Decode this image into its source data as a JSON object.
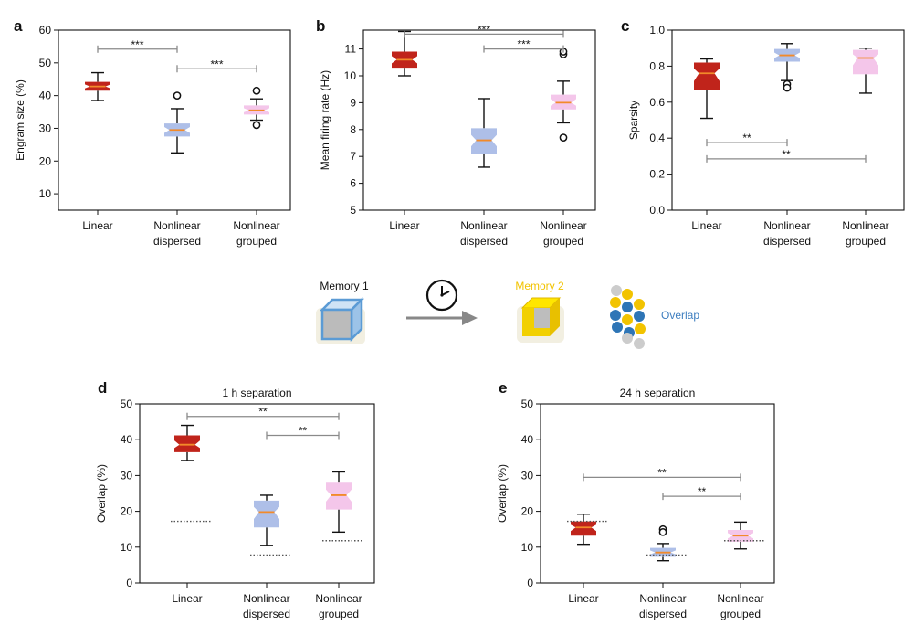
{
  "panel_letters": [
    "a",
    "b",
    "c",
    "d",
    "e"
  ],
  "group_labels": [
    [
      "Linear"
    ],
    [
      "Nonlinear",
      "dispersed"
    ],
    [
      "Nonlinear",
      "grouped"
    ]
  ],
  "colors": {
    "linear": "#c0241b",
    "dispersed": "#aebfe8",
    "grouped": "#f4c6ea",
    "median": "#f28a2a",
    "sig_line": "#8a8a8a",
    "memory1": "#5b9bd5",
    "memory2": "#f2c300",
    "overlap_text": "#3f7fc0"
  },
  "legend": {
    "memory1_label": "Memory 1",
    "memory2_label": "Memory 2",
    "overlap_label": "Overlap",
    "icons": [
      "memory1-cube-icon",
      "clock-icon",
      "arrow-right-icon",
      "memory2-cube-icon",
      "overlap-cluster-icon"
    ]
  },
  "chart_data": [
    {
      "panel": "a",
      "type": "boxplot",
      "notched": true,
      "title": "",
      "xlabel": "",
      "ylabel": "Engram size (%)",
      "ylim": [
        5,
        60
      ],
      "yticks": [
        10,
        20,
        30,
        40,
        50,
        60
      ],
      "categories": [
        "Linear",
        "Nonlinear dispersed",
        "Nonlinear grouped"
      ],
      "boxes": [
        {
          "min": 38.5,
          "q1": 41.5,
          "median": 42.8,
          "q3": 44.2,
          "max": 47,
          "outliers": []
        },
        {
          "min": 22.5,
          "q1": 27.5,
          "median": 29.5,
          "q3": 31.5,
          "max": 36,
          "outliers": [
            40
          ]
        },
        {
          "min": 32.5,
          "q1": 34.2,
          "median": 35.5,
          "q3": 37,
          "max": 39,
          "outliers": [
            41.5,
            31
          ]
        }
      ],
      "significance": [
        {
          "from": 0,
          "to": 1,
          "label": "***",
          "y": 54.2
        },
        {
          "from": 1,
          "to": 2,
          "label": "***",
          "y": 48.2
        }
      ]
    },
    {
      "panel": "b",
      "type": "boxplot",
      "notched": true,
      "title": "",
      "xlabel": "",
      "ylabel": "Mean firing rate (Hz)",
      "ylim": [
        5,
        11.7
      ],
      "yticks": [
        5,
        6,
        7,
        8,
        9,
        10,
        11
      ],
      "categories": [
        "Linear",
        "Nonlinear dispersed",
        "Nonlinear grouped"
      ],
      "boxes": [
        {
          "min": 10.0,
          "q1": 10.3,
          "median": 10.6,
          "q3": 10.9,
          "max": 11.65,
          "outliers": []
        },
        {
          "min": 6.6,
          "q1": 7.1,
          "median": 7.6,
          "q3": 8.05,
          "max": 9.15,
          "outliers": []
        },
        {
          "min": 8.25,
          "q1": 8.75,
          "median": 9.0,
          "q3": 9.3,
          "max": 9.8,
          "outliers": [
            10.8,
            10.9,
            7.7
          ]
        }
      ],
      "significance": [
        {
          "from": 0,
          "to": 2,
          "label": "***",
          "y": 11.55
        },
        {
          "from": 1,
          "to": 2,
          "label": "***",
          "y": 11.0
        }
      ]
    },
    {
      "panel": "c",
      "type": "boxplot",
      "notched": true,
      "title": "",
      "xlabel": "",
      "ylabel": "Sparsity",
      "ylim": [
        0,
        1.0
      ],
      "yticks": [
        0.0,
        0.2,
        0.4,
        0.6,
        0.8,
        1.0
      ],
      "categories": [
        "Linear",
        "Nonlinear dispersed",
        "Nonlinear grouped"
      ],
      "boxes": [
        {
          "min": 0.51,
          "q1": 0.665,
          "median": 0.76,
          "q3": 0.82,
          "max": 0.84,
          "outliers": []
        },
        {
          "min": 0.72,
          "q1": 0.825,
          "median": 0.86,
          "q3": 0.895,
          "max": 0.925,
          "outliers": [
            0.7,
            0.68
          ]
        },
        {
          "min": 0.65,
          "q1": 0.755,
          "median": 0.845,
          "q3": 0.89,
          "max": 0.9,
          "outliers": []
        }
      ],
      "significance": [
        {
          "from": 0,
          "to": 1,
          "label": "**",
          "y": 0.375
        },
        {
          "from": 0,
          "to": 2,
          "label": "**",
          "y": 0.285
        }
      ]
    },
    {
      "panel": "d",
      "type": "boxplot",
      "notched": true,
      "title": "1 h separation",
      "xlabel": "",
      "ylabel": "Overlap (%)",
      "ylim": [
        0,
        50
      ],
      "yticks": [
        0,
        10,
        20,
        30,
        40,
        50
      ],
      "categories": [
        "Linear",
        "Nonlinear dispersed",
        "Nonlinear grouped"
      ],
      "boxes": [
        {
          "min": 34.2,
          "q1": 36.5,
          "median": 38.6,
          "q3": 41.2,
          "max": 44,
          "outliers": [],
          "chance": 17.2
        },
        {
          "min": 10.5,
          "q1": 15.5,
          "median": 19.8,
          "q3": 23,
          "max": 24.5,
          "outliers": [],
          "chance": 7.8
        },
        {
          "min": 14.2,
          "q1": 20.5,
          "median": 24.5,
          "q3": 28,
          "max": 31,
          "outliers": [],
          "chance": 11.8
        }
      ],
      "significance": [
        {
          "from": 0,
          "to": 2,
          "label": "**",
          "y": 46.5
        },
        {
          "from": 1,
          "to": 2,
          "label": "**",
          "y": 41.2
        }
      ]
    },
    {
      "panel": "e",
      "type": "boxplot",
      "notched": true,
      "title": "24 h separation",
      "xlabel": "",
      "ylabel": "Overlap (%)",
      "ylim": [
        0,
        50
      ],
      "yticks": [
        0,
        10,
        20,
        30,
        40,
        50
      ],
      "categories": [
        "Linear",
        "Nonlinear dispersed",
        "Nonlinear grouped"
      ],
      "boxes": [
        {
          "min": 10.8,
          "q1": 13.2,
          "median": 15.5,
          "q3": 17.2,
          "max": 19.2,
          "outliers": [],
          "chance": 17.2
        },
        {
          "min": 6.2,
          "q1": 7.3,
          "median": 8.5,
          "q3": 9.8,
          "max": 11,
          "outliers": [
            15,
            14.2
          ],
          "chance": 7.8
        },
        {
          "min": 9.5,
          "q1": 11.5,
          "median": 13.2,
          "q3": 14.8,
          "max": 17,
          "outliers": [],
          "chance": 11.8
        }
      ],
      "significance": [
        {
          "from": 0,
          "to": 2,
          "label": "**",
          "y": 29.5
        },
        {
          "from": 1,
          "to": 2,
          "label": "**",
          "y": 24.2
        }
      ]
    }
  ]
}
